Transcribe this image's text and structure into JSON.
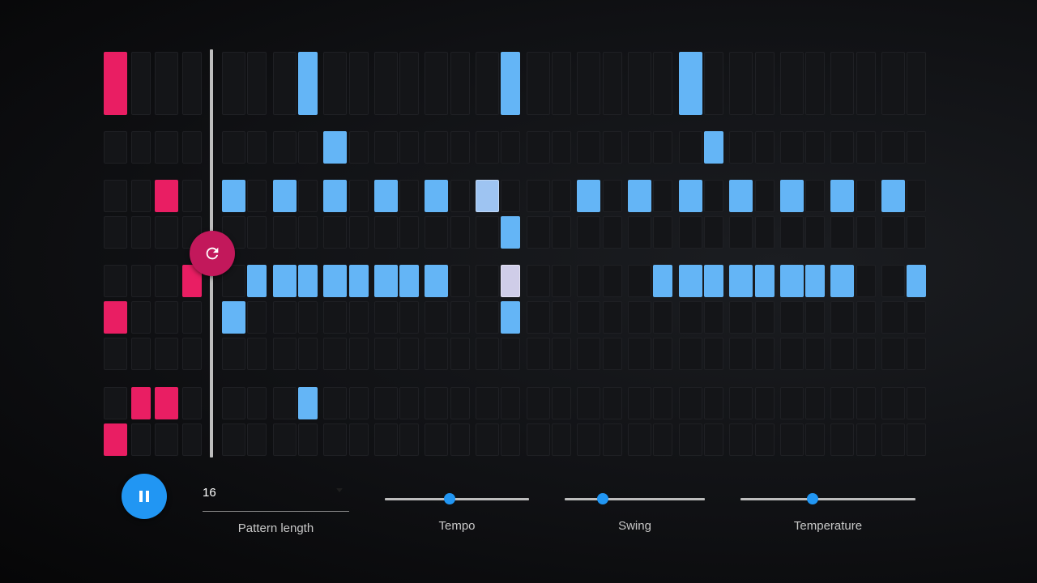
{
  "colors": {
    "seed_on": "#e91e63",
    "generated_on": "#64b5f6",
    "regenerate_button": "#c2185b",
    "play_button": "#2196f3",
    "cell_off": "#141518"
  },
  "sequencer": {
    "seed_steps": 4,
    "generated_steps": 28,
    "rows": [
      {
        "seed_active": [
          0
        ],
        "gen_active": [
          3,
          11,
          18
        ]
      },
      {
        "seed_active": [],
        "gen_active": [
          4,
          19
        ]
      },
      {
        "seed_active": [
          2
        ],
        "gen_active": [
          0,
          2,
          4,
          6,
          8,
          10,
          14,
          16,
          18,
          20,
          22,
          24,
          26
        ],
        "gen_light": [
          10
        ]
      },
      {
        "seed_active": [],
        "gen_active": [
          11
        ]
      },
      {
        "seed_active": [
          3
        ],
        "gen_active": [
          1,
          2,
          3,
          4,
          5,
          6,
          7,
          8,
          11,
          17,
          18,
          19,
          20,
          21,
          22,
          23,
          24,
          27
        ],
        "gen_lavender": [
          11
        ]
      },
      {
        "seed_active": [
          0
        ],
        "gen_active": [
          0,
          11
        ]
      },
      {
        "seed_active": [],
        "gen_active": []
      },
      {
        "seed_active": [
          1,
          2
        ],
        "gen_active": [
          3
        ]
      },
      {
        "seed_active": [
          0
        ],
        "gen_active": []
      }
    ]
  },
  "controls": {
    "play_icon": "pause-icon",
    "regenerate_icon": "refresh-icon",
    "pattern_length": {
      "value": "16",
      "label": "Pattern length"
    },
    "tempo": {
      "label": "Tempo",
      "value_fraction": 0.45
    },
    "swing": {
      "label": "Swing",
      "value_fraction": 0.27
    },
    "temperature": {
      "label": "Temperature",
      "value_fraction": 0.41
    }
  }
}
